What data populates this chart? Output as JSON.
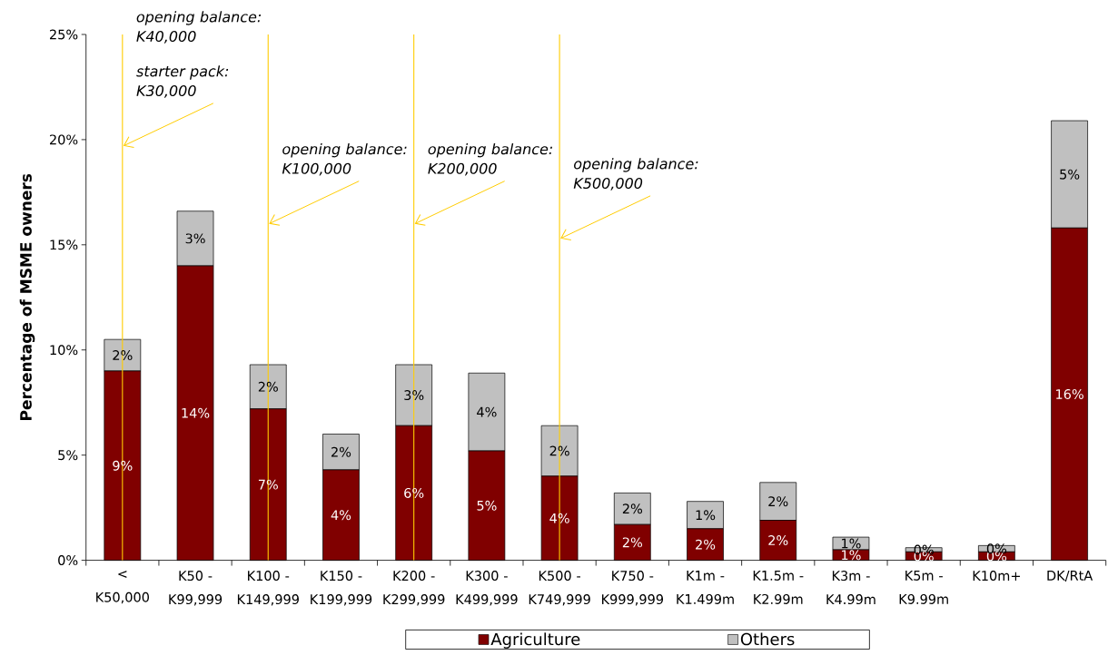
{
  "chart_data": {
    "type": "bar",
    "stacked": true,
    "ylabel": "Percentage of MSME owners",
    "categories": [
      "< K50,000",
      "K50 - K99,999",
      "K100 - K149,999",
      "K150 - K199,999",
      "K200 - K299,999",
      "K300 - K499,999",
      "K500 - K749,999",
      "K750 - K999,999",
      "K1m - K1.499m",
      "K1.5m - K2.99m",
      "K3m - K4.99m",
      "K5m - K9.99m",
      "K10m+",
      "DK/RtA"
    ],
    "series": [
      {
        "name": "Agriculture",
        "color": "#800000",
        "values": [
          9.0,
          14.0,
          7.2,
          4.3,
          6.4,
          5.2,
          4.0,
          1.7,
          1.5,
          1.9,
          0.5,
          0.4,
          0.4,
          15.8
        ],
        "value_labels": [
          "9%",
          "14%",
          "7%",
          "4%",
          "6%",
          "5%",
          "4%",
          "2%",
          "2%",
          "2%",
          "1%",
          "0%",
          "0%",
          "16%"
        ]
      },
      {
        "name": "Others",
        "color": "#c0c0c0",
        "values": [
          1.5,
          2.6,
          2.1,
          1.7,
          2.9,
          3.7,
          2.4,
          1.5,
          1.3,
          1.8,
          0.6,
          0.2,
          0.3,
          5.1
        ],
        "value_labels": [
          "2%",
          "3%",
          "2%",
          "2%",
          "3%",
          "4%",
          "2%",
          "2%",
          "1%",
          "2%",
          "1%",
          "0%",
          "0%",
          "5%"
        ]
      }
    ],
    "ylim": [
      0,
      25
    ],
    "yticks": [
      {
        "value": 0,
        "label": "0%"
      },
      {
        "value": 5,
        "label": "5%"
      },
      {
        "value": 10,
        "label": "10%"
      },
      {
        "value": 15,
        "label": "15%"
      },
      {
        "value": 20,
        "label": "20%"
      },
      {
        "value": 25,
        "label": "25%"
      }
    ],
    "ref_lines": [
      {
        "axis": "x",
        "value": "< K50,000",
        "color": "#ffcc00"
      },
      {
        "axis": "x",
        "value": "K100 - K149,999",
        "color": "#ffcc00"
      },
      {
        "axis": "x",
        "value": "K200 - K299,999",
        "color": "#ffcc00"
      },
      {
        "axis": "x",
        "value": "K500 - K749,999",
        "color": "#ffcc00"
      }
    ],
    "annotations": [
      "opening balance: K40,000",
      {
        "text": "starter pack: K30,000",
        "x": "< K50,000",
        "y": 19.7
      },
      {
        "text": "opening balance: K100,000",
        "x": "K100 - K149,999",
        "y": 16.0
      },
      {
        "text": "opening balance: K200,000",
        "x": "K200 - K299,999",
        "y": 16.0
      },
      {
        "text": "opening balance: K500,000",
        "x": "K500 - K749,999",
        "y": 15.3
      }
    ],
    "legend": "bottom"
  }
}
